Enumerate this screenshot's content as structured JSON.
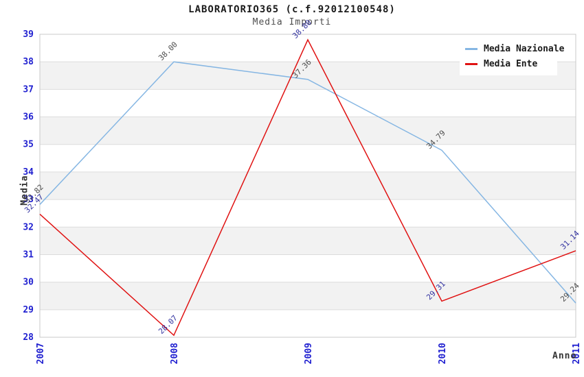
{
  "title": "LABORATORIO365 (c.f.92012100548)",
  "subtitle": "Media Importi",
  "chart_data": {
    "type": "line",
    "x": [
      2007,
      2008,
      2009,
      2010,
      2011
    ],
    "series": [
      {
        "name": "Media Nazionale",
        "color": "#85b6e3",
        "label_color": "#4d4d4d",
        "values": [
          32.82,
          38.0,
          37.36,
          34.79,
          29.24
        ]
      },
      {
        "name": "Media Ente",
        "color": "#e01212",
        "label_color": "#3333a0",
        "values": [
          32.47,
          28.07,
          38.8,
          29.31,
          31.14
        ]
      }
    ],
    "xlabel": "Anno",
    "ylabel": "Media",
    "ylim": [
      28,
      39
    ],
    "yticks": [
      28,
      29,
      30,
      31,
      32,
      33,
      34,
      35,
      36,
      37,
      38,
      39
    ],
    "legend_position": "top-right",
    "grid": true,
    "band_fill": "#f2f2f2",
    "gridline_color": "#dcdcdc",
    "border_color": "#c9c9c9",
    "tick_label_color": "#2020d0",
    "data_label_decimals": 2
  }
}
